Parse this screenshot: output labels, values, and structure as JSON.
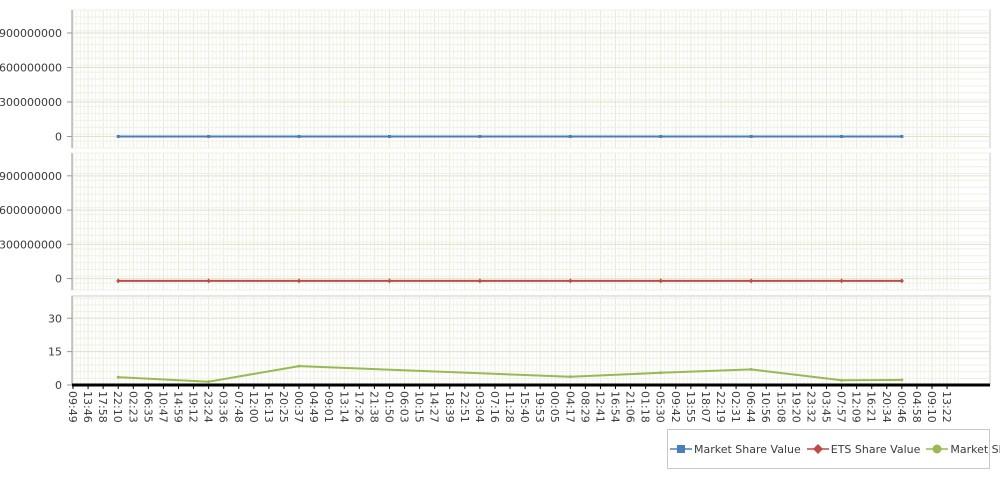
{
  "chart_data": {
    "type": "line",
    "x_ticks": [
      "09:49",
      "13:46",
      "17:58",
      "22:10",
      "02:23",
      "06:35",
      "10:47",
      "14:59",
      "19:12",
      "23:24",
      "03:36",
      "07:48",
      "12:00",
      "16:13",
      "20:25",
      "00:37",
      "04:49",
      "09:01",
      "13:14",
      "17:26",
      "21:38",
      "01:50",
      "06:03",
      "10:15",
      "14:27",
      "18:39",
      "22:51",
      "03:04",
      "07:16",
      "11:28",
      "15:40",
      "19:53",
      "00:05",
      "04:17",
      "08:29",
      "12:41",
      "16:54",
      "21:06",
      "01:18",
      "05:30",
      "09:42",
      "13:55",
      "18:07",
      "22:19",
      "02:31",
      "06:44",
      "10:56",
      "15:08",
      "19:20",
      "23:32",
      "03:45",
      "07:57",
      "12:09",
      "16:21",
      "20:34",
      "00:46",
      "04:58",
      "09:10",
      "13:22"
    ],
    "panels": [
      {
        "yticks": [
          "0",
          "300000000",
          "600000000",
          "900000000"
        ],
        "ylim": [
          -100000000,
          1100000000
        ],
        "series": [
          {
            "name": "Market Share Value",
            "color": "#4a7ebb",
            "marker": "square",
            "x": [
              3,
              9,
              15,
              21,
              27,
              33,
              39,
              45,
              51,
              55
            ],
            "values": [
              0,
              0,
              0,
              0,
              0,
              0,
              0,
              0,
              0,
              0
            ]
          }
        ]
      },
      {
        "yticks": [
          "0",
          "300000000",
          "600000000",
          "900000000"
        ],
        "ylim": [
          -100000000,
          1100000000
        ],
        "series": [
          {
            "name": "ETS Share Value",
            "color": "#be4b48",
            "marker": "diamond",
            "x": [
              3,
              9,
              15,
              21,
              27,
              33,
              39,
              45,
              51,
              55
            ],
            "values": [
              -20000000,
              -20000000,
              -20000000,
              -20000000,
              -20000000,
              -20000000,
              -20000000,
              -20000000,
              -20000000,
              -20000000
            ]
          }
        ]
      },
      {
        "yticks": [
          "0",
          "15",
          "30"
        ],
        "ylim": [
          0,
          40
        ],
        "series": [
          {
            "name": "Market Share",
            "color": "#98b954",
            "marker": "circle",
            "x": [
              3,
              9,
              15,
              33,
              39,
              45,
              51,
              55
            ],
            "values": [
              3.5,
              1.5,
              8.5,
              3.7,
              5.5,
              7,
              2.1,
              2.3
            ]
          }
        ]
      }
    ],
    "legend": {
      "placement": "bottom-right",
      "items": [
        {
          "label": "Market Share Value",
          "color": "#4a7ebb",
          "marker": "square"
        },
        {
          "label": "ETS Share Value",
          "color": "#be4b48",
          "marker": "diamond"
        },
        {
          "label": "Market Share",
          "color": "#98b954",
          "marker": "circle"
        }
      ]
    },
    "grid": true
  }
}
